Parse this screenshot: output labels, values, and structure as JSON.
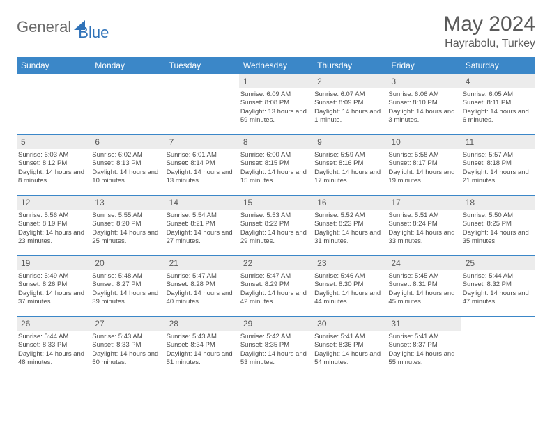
{
  "logo": {
    "part1": "General",
    "part2": "Blue"
  },
  "title": "May 2024",
  "location": "Hayrabolu, Turkey",
  "colors": {
    "header_bg": "#3b87c8",
    "daynum_bg": "#ececec",
    "text": "#4a4a4a",
    "title": "#5a5a5a"
  },
  "weekdays": [
    "Sunday",
    "Monday",
    "Tuesday",
    "Wednesday",
    "Thursday",
    "Friday",
    "Saturday"
  ],
  "weeks": [
    [
      {
        "day": "",
        "sunrise": "",
        "sunset": "",
        "daylight": ""
      },
      {
        "day": "",
        "sunrise": "",
        "sunset": "",
        "daylight": ""
      },
      {
        "day": "",
        "sunrise": "",
        "sunset": "",
        "daylight": ""
      },
      {
        "day": "1",
        "sunrise": "Sunrise: 6:09 AM",
        "sunset": "Sunset: 8:08 PM",
        "daylight": "Daylight: 13 hours and 59 minutes."
      },
      {
        "day": "2",
        "sunrise": "Sunrise: 6:07 AM",
        "sunset": "Sunset: 8:09 PM",
        "daylight": "Daylight: 14 hours and 1 minute."
      },
      {
        "day": "3",
        "sunrise": "Sunrise: 6:06 AM",
        "sunset": "Sunset: 8:10 PM",
        "daylight": "Daylight: 14 hours and 3 minutes."
      },
      {
        "day": "4",
        "sunrise": "Sunrise: 6:05 AM",
        "sunset": "Sunset: 8:11 PM",
        "daylight": "Daylight: 14 hours and 6 minutes."
      }
    ],
    [
      {
        "day": "5",
        "sunrise": "Sunrise: 6:03 AM",
        "sunset": "Sunset: 8:12 PM",
        "daylight": "Daylight: 14 hours and 8 minutes."
      },
      {
        "day": "6",
        "sunrise": "Sunrise: 6:02 AM",
        "sunset": "Sunset: 8:13 PM",
        "daylight": "Daylight: 14 hours and 10 minutes."
      },
      {
        "day": "7",
        "sunrise": "Sunrise: 6:01 AM",
        "sunset": "Sunset: 8:14 PM",
        "daylight": "Daylight: 14 hours and 13 minutes."
      },
      {
        "day": "8",
        "sunrise": "Sunrise: 6:00 AM",
        "sunset": "Sunset: 8:15 PM",
        "daylight": "Daylight: 14 hours and 15 minutes."
      },
      {
        "day": "9",
        "sunrise": "Sunrise: 5:59 AM",
        "sunset": "Sunset: 8:16 PM",
        "daylight": "Daylight: 14 hours and 17 minutes."
      },
      {
        "day": "10",
        "sunrise": "Sunrise: 5:58 AM",
        "sunset": "Sunset: 8:17 PM",
        "daylight": "Daylight: 14 hours and 19 minutes."
      },
      {
        "day": "11",
        "sunrise": "Sunrise: 5:57 AM",
        "sunset": "Sunset: 8:18 PM",
        "daylight": "Daylight: 14 hours and 21 minutes."
      }
    ],
    [
      {
        "day": "12",
        "sunrise": "Sunrise: 5:56 AM",
        "sunset": "Sunset: 8:19 PM",
        "daylight": "Daylight: 14 hours and 23 minutes."
      },
      {
        "day": "13",
        "sunrise": "Sunrise: 5:55 AM",
        "sunset": "Sunset: 8:20 PM",
        "daylight": "Daylight: 14 hours and 25 minutes."
      },
      {
        "day": "14",
        "sunrise": "Sunrise: 5:54 AM",
        "sunset": "Sunset: 8:21 PM",
        "daylight": "Daylight: 14 hours and 27 minutes."
      },
      {
        "day": "15",
        "sunrise": "Sunrise: 5:53 AM",
        "sunset": "Sunset: 8:22 PM",
        "daylight": "Daylight: 14 hours and 29 minutes."
      },
      {
        "day": "16",
        "sunrise": "Sunrise: 5:52 AM",
        "sunset": "Sunset: 8:23 PM",
        "daylight": "Daylight: 14 hours and 31 minutes."
      },
      {
        "day": "17",
        "sunrise": "Sunrise: 5:51 AM",
        "sunset": "Sunset: 8:24 PM",
        "daylight": "Daylight: 14 hours and 33 minutes."
      },
      {
        "day": "18",
        "sunrise": "Sunrise: 5:50 AM",
        "sunset": "Sunset: 8:25 PM",
        "daylight": "Daylight: 14 hours and 35 minutes."
      }
    ],
    [
      {
        "day": "19",
        "sunrise": "Sunrise: 5:49 AM",
        "sunset": "Sunset: 8:26 PM",
        "daylight": "Daylight: 14 hours and 37 minutes."
      },
      {
        "day": "20",
        "sunrise": "Sunrise: 5:48 AM",
        "sunset": "Sunset: 8:27 PM",
        "daylight": "Daylight: 14 hours and 39 minutes."
      },
      {
        "day": "21",
        "sunrise": "Sunrise: 5:47 AM",
        "sunset": "Sunset: 8:28 PM",
        "daylight": "Daylight: 14 hours and 40 minutes."
      },
      {
        "day": "22",
        "sunrise": "Sunrise: 5:47 AM",
        "sunset": "Sunset: 8:29 PM",
        "daylight": "Daylight: 14 hours and 42 minutes."
      },
      {
        "day": "23",
        "sunrise": "Sunrise: 5:46 AM",
        "sunset": "Sunset: 8:30 PM",
        "daylight": "Daylight: 14 hours and 44 minutes."
      },
      {
        "day": "24",
        "sunrise": "Sunrise: 5:45 AM",
        "sunset": "Sunset: 8:31 PM",
        "daylight": "Daylight: 14 hours and 45 minutes."
      },
      {
        "day": "25",
        "sunrise": "Sunrise: 5:44 AM",
        "sunset": "Sunset: 8:32 PM",
        "daylight": "Daylight: 14 hours and 47 minutes."
      }
    ],
    [
      {
        "day": "26",
        "sunrise": "Sunrise: 5:44 AM",
        "sunset": "Sunset: 8:33 PM",
        "daylight": "Daylight: 14 hours and 48 minutes."
      },
      {
        "day": "27",
        "sunrise": "Sunrise: 5:43 AM",
        "sunset": "Sunset: 8:33 PM",
        "daylight": "Daylight: 14 hours and 50 minutes."
      },
      {
        "day": "28",
        "sunrise": "Sunrise: 5:43 AM",
        "sunset": "Sunset: 8:34 PM",
        "daylight": "Daylight: 14 hours and 51 minutes."
      },
      {
        "day": "29",
        "sunrise": "Sunrise: 5:42 AM",
        "sunset": "Sunset: 8:35 PM",
        "daylight": "Daylight: 14 hours and 53 minutes."
      },
      {
        "day": "30",
        "sunrise": "Sunrise: 5:41 AM",
        "sunset": "Sunset: 8:36 PM",
        "daylight": "Daylight: 14 hours and 54 minutes."
      },
      {
        "day": "31",
        "sunrise": "Sunrise: 5:41 AM",
        "sunset": "Sunset: 8:37 PM",
        "daylight": "Daylight: 14 hours and 55 minutes."
      },
      {
        "day": "",
        "sunrise": "",
        "sunset": "",
        "daylight": ""
      }
    ]
  ]
}
